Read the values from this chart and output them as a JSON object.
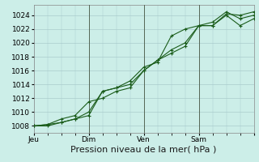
{
  "xlabel": "Pression niveau de la mer( hPa )",
  "bg_color": "#cceee8",
  "grid_color": "#aacccc",
  "line_color": "#1a5c1a",
  "vline_color": "#556655",
  "ylim": [
    1007,
    1025.5
  ],
  "xlim": [
    0,
    96
  ],
  "yticks": [
    1008,
    1010,
    1012,
    1014,
    1016,
    1018,
    1020,
    1022,
    1024
  ],
  "day_labels": [
    {
      "x": 0,
      "label": "Jeu"
    },
    {
      "x": 24,
      "label": "Dim"
    },
    {
      "x": 48,
      "label": "Ven"
    },
    {
      "x": 72,
      "label": "Sam"
    }
  ],
  "vlines": [
    24,
    48,
    72
  ],
  "series": [
    {
      "x": [
        0,
        6,
        12,
        18,
        24,
        30,
        36,
        42,
        48,
        54,
        60,
        66,
        72,
        78,
        84,
        90,
        96
      ],
      "y": [
        1008,
        1008.2,
        1008.5,
        1009.0,
        1009.5,
        1013.0,
        1013.5,
        1014.5,
        1016.5,
        1017.2,
        1021.0,
        1022.0,
        1022.5,
        1022.5,
        1024.2,
        1024.0,
        1024.5
      ]
    },
    {
      "x": [
        0,
        6,
        12,
        18,
        24,
        30,
        36,
        42,
        48,
        54,
        60,
        66,
        72,
        78,
        84,
        90,
        96
      ],
      "y": [
        1008,
        1008.2,
        1009.0,
        1009.5,
        1011.5,
        1012.0,
        1013.0,
        1013.5,
        1016.0,
        1017.5,
        1019.0,
        1020.0,
        1022.5,
        1023.0,
        1024.5,
        1023.5,
        1024.0
      ]
    },
    {
      "x": [
        0,
        6,
        12,
        18,
        24,
        30,
        36,
        42,
        48,
        54,
        60,
        66,
        72,
        78,
        84,
        90,
        96
      ],
      "y": [
        1008,
        1008.0,
        1008.5,
        1009.0,
        1010.0,
        1013.0,
        1013.5,
        1014.0,
        1016.0,
        1017.5,
        1018.5,
        1019.5,
        1022.5,
        1022.5,
        1024.0,
        1022.5,
        1023.5
      ]
    }
  ],
  "xlabel_fontsize": 8,
  "tick_fontsize": 6.5,
  "marker_size": 3,
  "line_width": 0.8
}
